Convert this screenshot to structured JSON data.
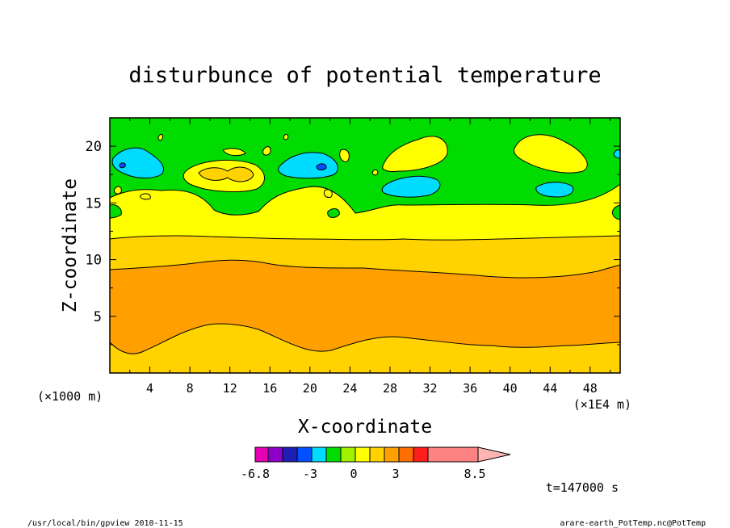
{
  "chart_data": {
    "type": "heatmap",
    "title": "disturbunce of potential temperature",
    "xlabel": "X-coordinate",
    "ylabel": "Z-coordinate",
    "x_unit": "(×1000 m)",
    "x_scale_note": "(×1E4 m)",
    "x_ticks": [
      "4",
      "8",
      "12",
      "16",
      "20",
      "24",
      "28",
      "32",
      "36",
      "40",
      "44",
      "48"
    ],
    "y_ticks": [
      "5",
      "10",
      "15",
      "20"
    ],
    "xlim": [
      0,
      51
    ],
    "ylim": [
      0,
      22.5
    ],
    "colorbar": {
      "labels": [
        "-6.8",
        "-3",
        "0",
        "3",
        "8.5"
      ],
      "colors": [
        "#e600b4",
        "#8c00c8",
        "#1e1eb4",
        "#0050ff",
        "#00dcff",
        "#00dc00",
        "#a0f000",
        "#ffff00",
        "#ffd200",
        "#ffa000",
        "#ff6e00",
        "#ff1e1e",
        "#ff8282",
        "#ffb4b4"
      ]
    },
    "bands": [
      {
        "name": "upper",
        "z_from": 16.5,
        "z_to": 22.5,
        "color": "#00dc00"
      },
      {
        "name": "yellow",
        "z_from": 12.2,
        "z_to": 16.5,
        "color": "#ffff00"
      },
      {
        "name": "gold",
        "z_from": 9.3,
        "z_to": 12.2,
        "color": "#ffd200"
      },
      {
        "name": "orange",
        "z_from": 2.5,
        "z_to": 9.3,
        "color": "#ffa000"
      },
      {
        "name": "lower",
        "z_from": 0,
        "z_to": 2.5,
        "color": "#ffd200"
      }
    ],
    "time_label": "t=147000 s"
  },
  "footer": {
    "left": "/usr/local/bin/gpview   2010-11-15",
    "right": "arare-earth_PotTemp.nc@PotTemp"
  }
}
